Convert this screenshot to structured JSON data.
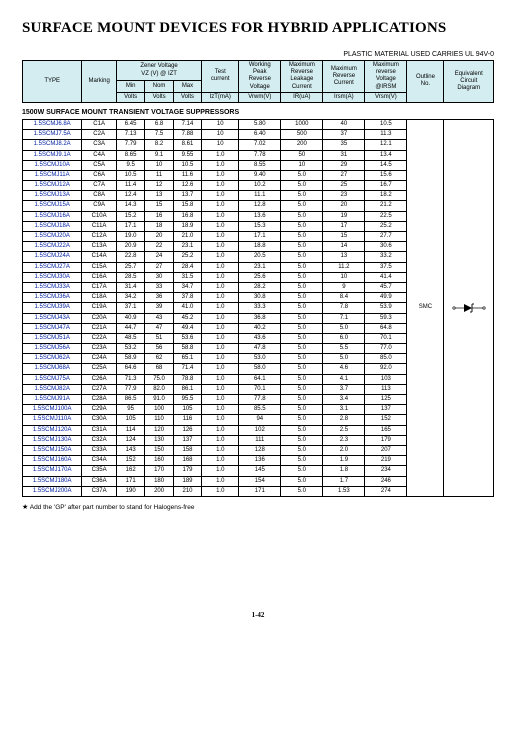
{
  "page": {
    "title": "SURFACE MOUNT DEVICES FOR HYBRID APPLICATIONS",
    "material_note": "PLASTIC MATERIAL USED CARRIES UL 94V-0",
    "section_label": "1500W SURFACE MOUNT TRANSIENT VOLTAGE SUPPRESSORS",
    "footnote_star": "★",
    "footnote": "Add the 'GP' after part number to stand for Halogens-free",
    "page_number": "1-42"
  },
  "header": {
    "type": "TYPE",
    "marking": "Marking",
    "zener": "Zener Voltage\nVZ (V) @ IZT",
    "min": "Min",
    "nom": "Nom",
    "max": "Max",
    "test_current": "Test\ncurrent",
    "working": "Working\nPeak\nReverse\nVoltage",
    "max_leakage": "Maximum\nReverse\nLeakage\nCurrent",
    "max_reverse": "Maximum\nReverse\nCurrent",
    "max_rev_voltage": "Maximum\nreverse\nVoltage\n@IRSM",
    "outline": "Outline\nNo.",
    "equiv": "Equivalent\nCircuit\nDiagram",
    "volts": "Volts",
    "izt": "IzT(mA)",
    "vrwm": "Vrwm(V)",
    "ir": "IR(uA)",
    "irsm": "Irsm(A)",
    "vrsm": "Vrsm(V)"
  },
  "outline_label": "SMC",
  "col_widths": {
    "type": 48,
    "marking": 28,
    "min": 23,
    "nom": 23,
    "max": 23,
    "izt": 30,
    "vrwm": 34,
    "ir": 34,
    "irsm": 34,
    "vrsm": 34,
    "outline": 30,
    "diagram": 40
  },
  "colors": {
    "header_bg": "#d4edf0",
    "type_text": "#0020a0",
    "border": "#000000"
  },
  "groups": [
    [
      {
        "type": "1.5SCMJ6.8A",
        "m": "C1A",
        "min": "6.45",
        "nom": "6.8",
        "max": "7.14",
        "izt": "10",
        "vrwm": "5.80",
        "ir": "1000",
        "irsm": "40",
        "vrsm": "10.5"
      },
      {
        "type": "1.5SCMJ7.5A",
        "m": "C2A",
        "min": "7.13",
        "nom": "7.5",
        "max": "7.88",
        "izt": "10",
        "vrwm": "6.40",
        "ir": "500",
        "irsm": "37",
        "vrsm": "11.3"
      },
      {
        "type": "1.5SCMJ8.2A",
        "m": "C3A",
        "min": "7.79",
        "nom": "8.2",
        "max": "8.61",
        "izt": "10",
        "vrwm": "7.02",
        "ir": "200",
        "irsm": "35",
        "vrsm": "12.1"
      },
      {
        "type": "1.5SCMJ9.1A",
        "m": "C4A",
        "min": "8.65",
        "nom": "9.1",
        "max": "9.55",
        "izt": "1.0",
        "vrwm": "7.78",
        "ir": "50",
        "irsm": "31",
        "vrsm": "13.4"
      },
      {
        "type": "1.5SCMJ10A",
        "m": "C5A",
        "min": "9.5",
        "nom": "10",
        "max": "10.5",
        "izt": "1.0",
        "vrwm": "8.55",
        "ir": "10",
        "irsm": "29",
        "vrsm": "14.5"
      }
    ],
    [
      {
        "type": "1.5SCMJ11A",
        "m": "C6A",
        "min": "10.5",
        "nom": "11",
        "max": "11.6",
        "izt": "1.0",
        "vrwm": "9.40",
        "ir": "5.0",
        "irsm": "27",
        "vrsm": "15.6"
      },
      {
        "type": "1.5SCMJ12A",
        "m": "C7A",
        "min": "11.4",
        "nom": "12",
        "max": "12.6",
        "izt": "1.0",
        "vrwm": "10.2",
        "ir": "5.0",
        "irsm": "25",
        "vrsm": "16.7"
      },
      {
        "type": "1.5SCMJ13A",
        "m": "C8A",
        "min": "12.4",
        "nom": "13",
        "max": "13.7",
        "izt": "1.0",
        "vrwm": "11.1",
        "ir": "5.0",
        "irsm": "23",
        "vrsm": "18.2"
      },
      {
        "type": "1.5SCMJ15A",
        "m": "C9A",
        "min": "14.3",
        "nom": "15",
        "max": "15.8",
        "izt": "1.0",
        "vrwm": "12.8",
        "ir": "5.0",
        "irsm": "20",
        "vrsm": "21.2"
      },
      {
        "type": "1.5SCMJ16A",
        "m": "C10A",
        "min": "15.2",
        "nom": "16",
        "max": "16.8",
        "izt": "1.0",
        "vrwm": "13.6",
        "ir": "5.0",
        "irsm": "19",
        "vrsm": "22.5"
      }
    ],
    [
      {
        "type": "1.5SCMJ18A",
        "m": "C11A",
        "min": "17.1",
        "nom": "18",
        "max": "18.9",
        "izt": "1.0",
        "vrwm": "15.3",
        "ir": "5.0",
        "irsm": "17",
        "vrsm": "25.2"
      },
      {
        "type": "1.5SCMJ20A",
        "m": "C12A",
        "min": "19.0",
        "nom": "20",
        "max": "21.0",
        "izt": "1.0",
        "vrwm": "17.1",
        "ir": "5.0",
        "irsm": "15",
        "vrsm": "27.7"
      },
      {
        "type": "1.5SCMJ22A",
        "m": "C13A",
        "min": "20.9",
        "nom": "22",
        "max": "23.1",
        "izt": "1.0",
        "vrwm": "18.8",
        "ir": "5.0",
        "irsm": "14",
        "vrsm": "30.6"
      },
      {
        "type": "1.5SCMJ24A",
        "m": "C14A",
        "min": "22.8",
        "nom": "24",
        "max": "25.2",
        "izt": "1.0",
        "vrwm": "20.5",
        "ir": "5.0",
        "irsm": "13",
        "vrsm": "33.2"
      },
      {
        "type": "1.5SCMJ27A",
        "m": "C15A",
        "min": "25.7",
        "nom": "27",
        "max": "28.4",
        "izt": "1.0",
        "vrwm": "23.1",
        "ir": "5.0",
        "irsm": "11.2",
        "vrsm": "37.5"
      }
    ],
    [
      {
        "type": "1.5SCMJ30A",
        "m": "C16A",
        "min": "28.5",
        "nom": "30",
        "max": "31.5",
        "izt": "1.0",
        "vrwm": "25.6",
        "ir": "5.0",
        "irsm": "10",
        "vrsm": "41.4"
      },
      {
        "type": "1.5SCMJ33A",
        "m": "C17A",
        "min": "31.4",
        "nom": "33",
        "max": "34.7",
        "izt": "1.0",
        "vrwm": "28.2",
        "ir": "5.0",
        "irsm": "9",
        "vrsm": "45.7"
      },
      {
        "type": "1.5SCMJ36A",
        "m": "C18A",
        "min": "34.2",
        "nom": "36",
        "max": "37.8",
        "izt": "1.0",
        "vrwm": "30.8",
        "ir": "5.0",
        "irsm": "8.4",
        "vrsm": "49.9"
      },
      {
        "type": "1.5SCMJ39A",
        "m": "C19A",
        "min": "37.1",
        "nom": "39",
        "max": "41.0",
        "izt": "1.0",
        "vrwm": "33.3",
        "ir": "5.0",
        "irsm": "7.8",
        "vrsm": "53.9"
      },
      {
        "type": "1.5SCMJ43A",
        "m": "C20A",
        "min": "40.9",
        "nom": "43",
        "max": "45.2",
        "izt": "1.0",
        "vrwm": "36.8",
        "ir": "5.0",
        "irsm": "7.1",
        "vrsm": "59.3"
      }
    ],
    [
      {
        "type": "1.5SCMJ47A",
        "m": "C21A",
        "min": "44.7",
        "nom": "47",
        "max": "49.4",
        "izt": "1.0",
        "vrwm": "40.2",
        "ir": "5.0",
        "irsm": "5.0",
        "vrsm": "64.8"
      },
      {
        "type": "1.5SCMJ51A",
        "m": "C22A",
        "min": "48.5",
        "nom": "51",
        "max": "53.6",
        "izt": "1.0",
        "vrwm": "43.6",
        "ir": "5.0",
        "irsm": "6.0",
        "vrsm": "70.1"
      },
      {
        "type": "1.5SCMJ56A",
        "m": "C23A",
        "min": "53.2",
        "nom": "56",
        "max": "58.8",
        "izt": "1.0",
        "vrwm": "47.8",
        "ir": "5.0",
        "irsm": "5.5",
        "vrsm": "77.0"
      },
      {
        "type": "1.5SCMJ62A",
        "m": "C24A",
        "min": "58.9",
        "nom": "62",
        "max": "65.1",
        "izt": "1.0",
        "vrwm": "53.0",
        "ir": "5.0",
        "irsm": "5.0",
        "vrsm": "85.0"
      },
      {
        "type": "1.5SCMJ68A",
        "m": "C25A",
        "min": "64.6",
        "nom": "68",
        "max": "71.4",
        "izt": "1.0",
        "vrwm": "58.0",
        "ir": "5.0",
        "irsm": "4.6",
        "vrsm": "92.0"
      }
    ],
    [
      {
        "type": "1.5SCMJ75A",
        "m": "C26A",
        "min": "71.3",
        "nom": "75.0",
        "max": "78.8",
        "izt": "1.0",
        "vrwm": "64.1",
        "ir": "5.0",
        "irsm": "4.1",
        "vrsm": "103"
      },
      {
        "type": "1.5SCMJ82A",
        "m": "C27A",
        "min": "77.9",
        "nom": "82.0",
        "max": "86.1",
        "izt": "1.0",
        "vrwm": "70.1",
        "ir": "5.0",
        "irsm": "3.7",
        "vrsm": "113"
      },
      {
        "type": "1.5SCMJ91A",
        "m": "C28A",
        "min": "86.5",
        "nom": "91.0",
        "max": "95.5",
        "izt": "1.0",
        "vrwm": "77.8",
        "ir": "5.0",
        "irsm": "3.4",
        "vrsm": "125"
      },
      {
        "type": "1.5SCMJ100A",
        "m": "C29A",
        "min": "95",
        "nom": "100",
        "max": "105",
        "izt": "1.0",
        "vrwm": "85.5",
        "ir": "5.0",
        "irsm": "3.1",
        "vrsm": "137"
      },
      {
        "type": "1.5SCMJ110A",
        "m": "C30A",
        "min": "105",
        "nom": "110",
        "max": "116",
        "izt": "1.0",
        "vrwm": "94",
        "ir": "5.0",
        "irsm": "2.8",
        "vrsm": "152"
      }
    ],
    [
      {
        "type": "1.5SCMJ120A",
        "m": "C31A",
        "min": "114",
        "nom": "120",
        "max": "126",
        "izt": "1.0",
        "vrwm": "102",
        "ir": "5.0",
        "irsm": "2.5",
        "vrsm": "165"
      },
      {
        "type": "1.5SCMJ130A",
        "m": "C32A",
        "min": "124",
        "nom": "130",
        "max": "137",
        "izt": "1.0",
        "vrwm": "111",
        "ir": "5.0",
        "irsm": "2.3",
        "vrsm": "179"
      },
      {
        "type": "1.5SCMJ150A",
        "m": "C33A",
        "min": "143",
        "nom": "150",
        "max": "158",
        "izt": "1.0",
        "vrwm": "128",
        "ir": "5.0",
        "irsm": "2.0",
        "vrsm": "207"
      },
      {
        "type": "1.5SCMJ160A",
        "m": "C34A",
        "min": "152",
        "nom": "160",
        "max": "168",
        "izt": "1.0",
        "vrwm": "136",
        "ir": "5.0",
        "irsm": "1.9",
        "vrsm": "219"
      },
      {
        "type": "1.5SCMJ170A",
        "m": "C35A",
        "min": "162",
        "nom": "170",
        "max": "179",
        "izt": "1.0",
        "vrwm": "145",
        "ir": "5.0",
        "irsm": "1.8",
        "vrsm": "234"
      }
    ],
    [
      {
        "type": "1.5SCMJ180A",
        "m": "C36A",
        "min": "171",
        "nom": "180",
        "max": "189",
        "izt": "1.0",
        "vrwm": "154",
        "ir": "5.0",
        "irsm": "1.7",
        "vrsm": "246"
      },
      {
        "type": "1.5SCMJ200A",
        "m": "C37A",
        "min": "190",
        "nom": "200",
        "max": "210",
        "izt": "1.0",
        "vrwm": "171",
        "ir": "5.0",
        "irsm": "1.53",
        "vrsm": "274"
      }
    ]
  ]
}
